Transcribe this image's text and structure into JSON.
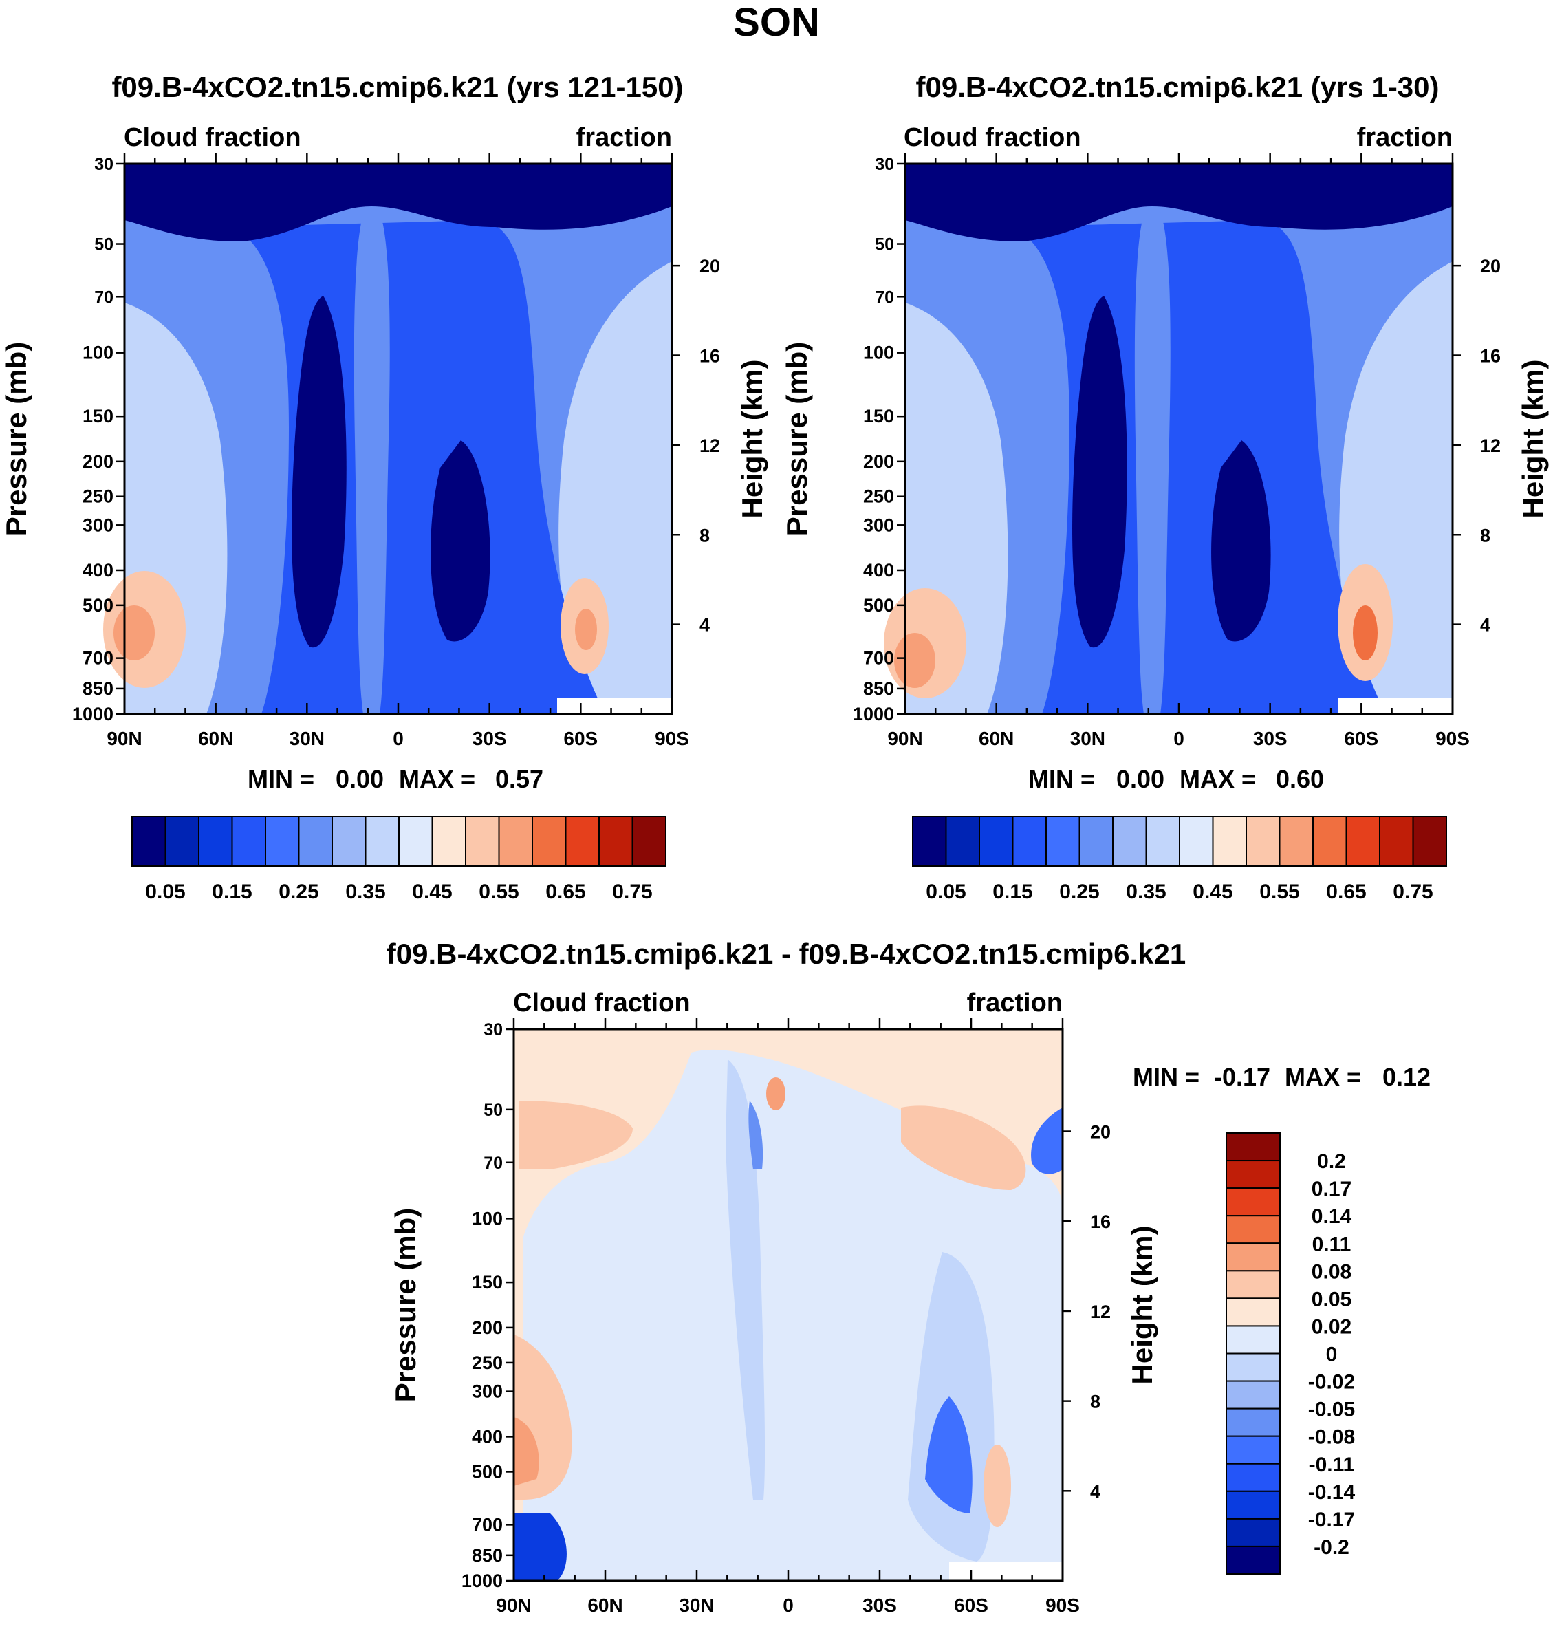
{
  "figure": {
    "title": "SON"
  },
  "colors": {
    "cloud_scale": [
      "#00007c",
      "#0024b4",
      "#0a3ce0",
      "#2455f8",
      "#3f70ff",
      "#6690f5",
      "#9bb7f7",
      "#c2d6fb",
      "#dfeafc",
      "#fde7d6",
      "#fbc7ab",
      "#f79f78",
      "#f06f40",
      "#e5401c",
      "#c01e08",
      "#8a0805"
    ],
    "diff_scale": [
      "#00007c",
      "#0024b4",
      "#0a3ce0",
      "#2455f8",
      "#3f70ff",
      "#6690f5",
      "#9bb7f7",
      "#c2d6fb",
      "#dfeafc",
      "#fde7d6",
      "#fbc7ab",
      "#f79f78",
      "#f06f40",
      "#e5401c",
      "#c01e08",
      "#8a0805"
    ]
  },
  "chart_data": [
    {
      "type": "heatmap",
      "id": "top-left",
      "title": "f09.B-4xCO2.tn15.cmip6.k21 (yrs 121-150)",
      "left_label": "Cloud fraction",
      "right_label": "fraction",
      "xlabel": "",
      "ylabel": "Pressure (mb)",
      "ylabel_right": "Height (km)",
      "x_ticks": [
        "90N",
        "60N",
        "30N",
        "0",
        "30S",
        "60S",
        "90S"
      ],
      "x_tick_values": [
        90,
        60,
        30,
        0,
        -30,
        -60,
        -90
      ],
      "y_ticks": [
        "30",
        "50",
        "70",
        "100",
        "150",
        "200",
        "250",
        "300",
        "400",
        "500",
        "700",
        "850",
        "1000"
      ],
      "y_tick_values": [
        30,
        50,
        70,
        100,
        150,
        200,
        250,
        300,
        400,
        500,
        700,
        850,
        1000
      ],
      "height_ticks": [
        "20",
        "16",
        "12",
        "8",
        "4"
      ],
      "height_tick_values": [
        20,
        16,
        12,
        8,
        4
      ],
      "min_label": "MIN =",
      "min_value": "0.00",
      "max_label": "MAX =",
      "max_value": "0.57",
      "ylim": [
        1000,
        30
      ],
      "xlim": [
        90,
        -90
      ],
      "colorbar": {
        "orientation": "horizontal",
        "levels": [
          0.05,
          0.1,
          0.15,
          0.2,
          0.25,
          0.3,
          0.35,
          0.4,
          0.45,
          0.5,
          0.55,
          0.6,
          0.65,
          0.7,
          0.75
        ],
        "labels": [
          "0.05",
          "0.15",
          "0.25",
          "0.35",
          "0.45",
          "0.55",
          "0.65",
          "0.75"
        ]
      }
    },
    {
      "type": "heatmap",
      "id": "top-right",
      "title": "f09.B-4xCO2.tn15.cmip6.k21 (yrs 1-30)",
      "left_label": "Cloud fraction",
      "right_label": "fraction",
      "xlabel": "",
      "ylabel": "Pressure (mb)",
      "ylabel_right": "Height (km)",
      "x_ticks": [
        "90N",
        "60N",
        "30N",
        "0",
        "30S",
        "60S",
        "90S"
      ],
      "x_tick_values": [
        90,
        60,
        30,
        0,
        -30,
        -60,
        -90
      ],
      "y_ticks": [
        "30",
        "50",
        "70",
        "100",
        "150",
        "200",
        "250",
        "300",
        "400",
        "500",
        "700",
        "850",
        "1000"
      ],
      "y_tick_values": [
        30,
        50,
        70,
        100,
        150,
        200,
        250,
        300,
        400,
        500,
        700,
        850,
        1000
      ],
      "height_ticks": [
        "20",
        "16",
        "12",
        "8",
        "4"
      ],
      "height_tick_values": [
        20,
        16,
        12,
        8,
        4
      ],
      "min_label": "MIN =",
      "min_value": "0.00",
      "max_label": "MAX =",
      "max_value": "0.60",
      "ylim": [
        1000,
        30
      ],
      "xlim": [
        90,
        -90
      ],
      "colorbar": {
        "orientation": "horizontal",
        "levels": [
          0.05,
          0.1,
          0.15,
          0.2,
          0.25,
          0.3,
          0.35,
          0.4,
          0.45,
          0.5,
          0.55,
          0.6,
          0.65,
          0.7,
          0.75
        ],
        "labels": [
          "0.05",
          "0.15",
          "0.25",
          "0.35",
          "0.45",
          "0.55",
          "0.65",
          "0.75"
        ]
      }
    },
    {
      "type": "heatmap",
      "id": "bottom-diff",
      "title": "f09.B-4xCO2.tn15.cmip6.k21 - f09.B-4xCO2.tn15.cmip6.k21",
      "left_label": "Cloud fraction",
      "right_label": "fraction",
      "xlabel": "",
      "ylabel": "Pressure (mb)",
      "ylabel_right": "Height (km)",
      "x_ticks": [
        "90N",
        "60N",
        "30N",
        "0",
        "30S",
        "60S",
        "90S"
      ],
      "x_tick_values": [
        90,
        60,
        30,
        0,
        -30,
        -60,
        -90
      ],
      "y_ticks": [
        "30",
        "50",
        "70",
        "100",
        "150",
        "200",
        "250",
        "300",
        "400",
        "500",
        "700",
        "850",
        "1000"
      ],
      "y_tick_values": [
        30,
        50,
        70,
        100,
        150,
        200,
        250,
        300,
        400,
        500,
        700,
        850,
        1000
      ],
      "height_ticks": [
        "20",
        "16",
        "12",
        "8",
        "4"
      ],
      "height_tick_values": [
        20,
        16,
        12,
        8,
        4
      ],
      "min_label": "MIN =",
      "min_value": "-0.17",
      "max_label": "MAX =",
      "max_value": "0.12",
      "ylim": [
        1000,
        30
      ],
      "xlim": [
        90,
        -90
      ],
      "colorbar": {
        "orientation": "vertical",
        "levels": [
          -0.2,
          -0.17,
          -0.14,
          -0.11,
          -0.08,
          -0.05,
          -0.02,
          0,
          0.02,
          0.05,
          0.08,
          0.11,
          0.14,
          0.17,
          0.2
        ],
        "labels": [
          "0.2",
          "0.17",
          "0.14",
          "0.11",
          "0.08",
          "0.05",
          "0.02",
          "0",
          "-0.02",
          "-0.05",
          "-0.08",
          "-0.11",
          "-0.14",
          "-0.17",
          "-0.2"
        ]
      }
    }
  ]
}
